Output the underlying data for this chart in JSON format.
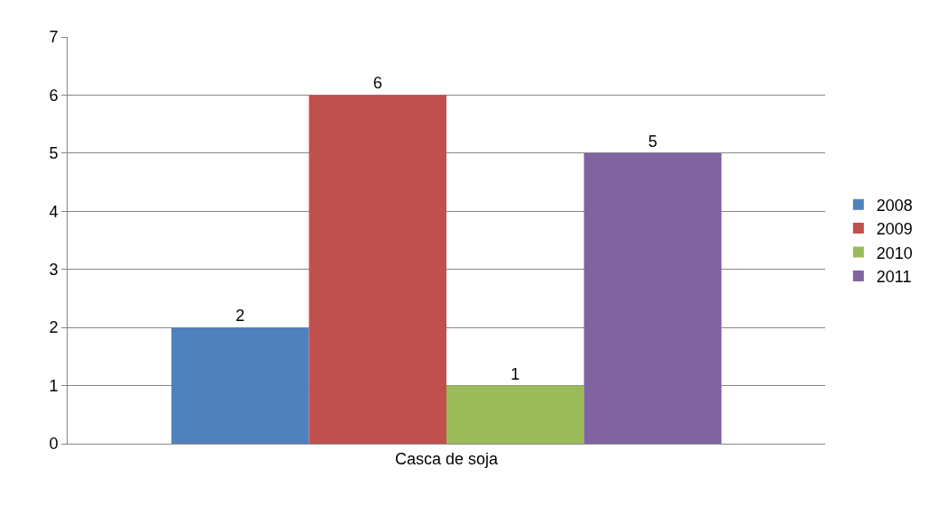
{
  "chart_data": {
    "type": "bar",
    "categories": [
      "Casca de soja"
    ],
    "series": [
      {
        "name": "2008",
        "color": "#4f81bd",
        "values": [
          2
        ]
      },
      {
        "name": "2009",
        "color": "#c0504d",
        "values": [
          6
        ]
      },
      {
        "name": "2010",
        "color": "#9bbb59",
        "values": [
          1
        ]
      },
      {
        "name": "2011",
        "color": "#8064a2",
        "values": [
          5
        ]
      }
    ],
    "ylim": [
      0,
      7
    ],
    "yticks": [
      0,
      1,
      2,
      3,
      4,
      5,
      6,
      7
    ],
    "grid": "y",
    "legend": "right",
    "data_labels": true
  }
}
